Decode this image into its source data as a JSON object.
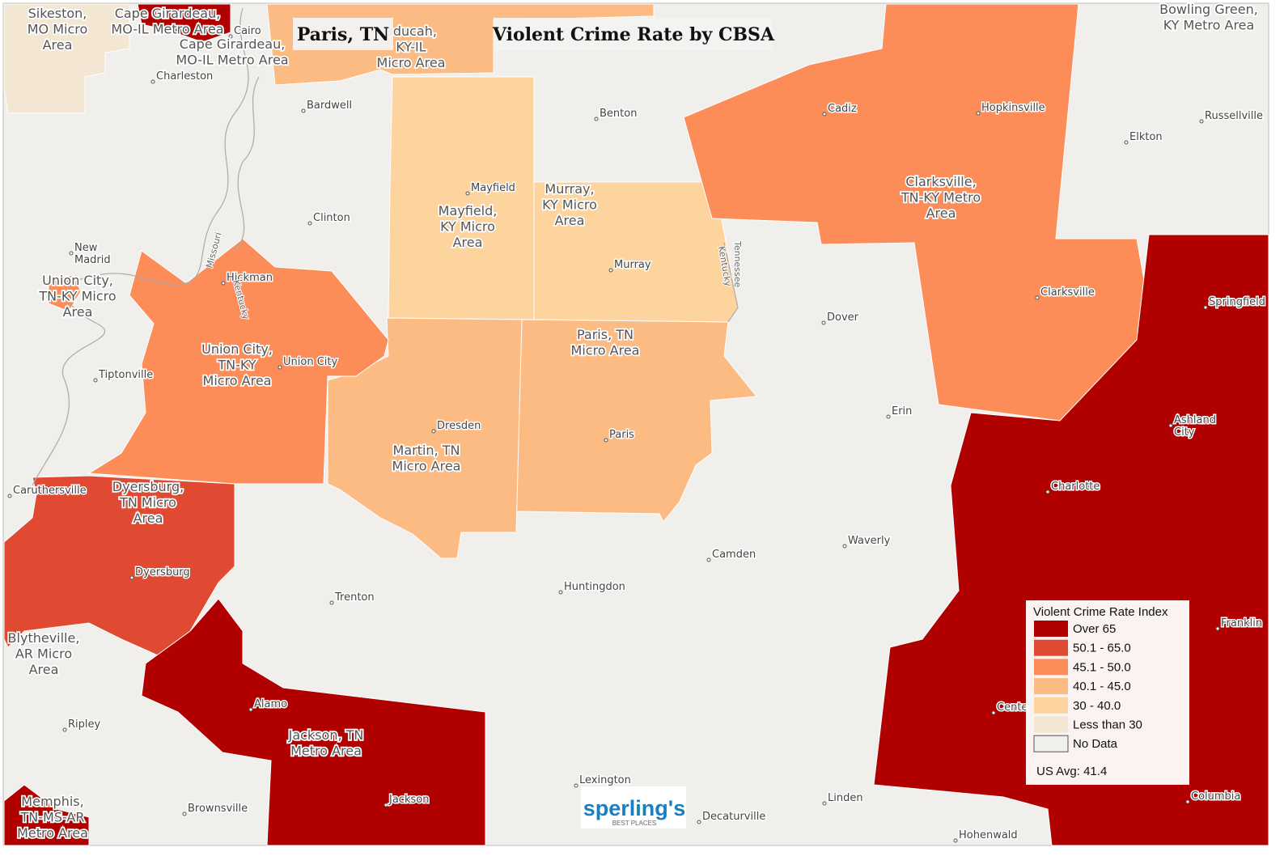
{
  "title": "Violent Crime Rate by CBSA",
  "location": "Paris, TN",
  "cbsa_labels": [
    [
      "Sikeston,",
      "MO Micro",
      "Area"
    ],
    [
      "Cape Girardeau,",
      "MO-IL Metro Area"
    ],
    [
      "Cape Girardeau,",
      "MO-IL Metro Area"
    ],
    [
      "aducah,",
      "KY-IL",
      "Micro Area"
    ],
    [
      "Mayfield,",
      "KY Micro",
      "Area"
    ],
    [
      "Murray,",
      "KY Micro",
      "Area"
    ],
    [
      "Clarksville,",
      "TN-KY Metro",
      "Area"
    ],
    [
      "Union City,",
      "TN-KY Micro",
      "Area"
    ],
    [
      "Union City,",
      "TN-KY",
      "Micro Area"
    ],
    [
      "Paris, TN",
      "Micro Area"
    ],
    [
      "Martin, TN",
      "Micro Area"
    ],
    [
      "Dyersburg,",
      "TN Micro",
      "Area"
    ],
    [
      "Blytheville,",
      "AR Micro",
      "Area"
    ],
    [
      "Jackson, TN",
      "Metro Area"
    ],
    [
      "Memphis,",
      "TN-MS-AR",
      "Metro Area"
    ],
    [
      "Bowling Green,",
      "KY Metro Area"
    ]
  ],
  "places": [
    [
      "Charleston"
    ],
    [
      "Cairo"
    ],
    [
      "Bardwell"
    ],
    [
      "Benton"
    ],
    [
      "Cadiz"
    ],
    [
      "Hopkinsville"
    ],
    [
      "Russellville"
    ],
    [
      "Elkton"
    ],
    [
      "Mayfield"
    ],
    [
      "Clinton"
    ],
    [
      "New",
      "Madrid"
    ],
    [
      "Hickman"
    ],
    [
      "Murray"
    ],
    [
      "Clarksville"
    ],
    [
      "Springfield"
    ],
    [
      "Dover"
    ],
    [
      "Union City"
    ],
    [
      "Tiptonville"
    ],
    [
      "Erin"
    ],
    [
      "Dresden"
    ],
    [
      "Paris"
    ],
    [
      "Ashland",
      "City"
    ],
    [
      "Charlotte"
    ],
    [
      "Caruthersville"
    ],
    [
      "Waverly"
    ],
    [
      "Camden"
    ],
    [
      "Huntingdon"
    ],
    [
      "Trenton"
    ],
    [
      "Dyersburg"
    ],
    [
      "Franklin"
    ],
    [
      "Alamo"
    ],
    [
      "Cente"
    ],
    [
      "Ripley"
    ],
    [
      "Lexington"
    ],
    [
      "Jackson"
    ],
    [
      "Linden"
    ],
    [
      "Columbia"
    ],
    [
      "Brownsville"
    ],
    [
      "Decaturville"
    ],
    [
      "Hohenwald"
    ]
  ],
  "state_labels": [
    "Missouri",
    "Kentucky",
    "Tennessee",
    "Kentucky"
  ],
  "legend": {
    "title": "Violent Crime Rate Index",
    "items": [
      {
        "label": "Over 65",
        "color": "#b10000"
      },
      {
        "label": "50.1 - 65.0",
        "color": "#e04a32"
      },
      {
        "label": "45.1 - 50.0",
        "color": "#fc8d59"
      },
      {
        "label": "40.1 - 45.0",
        "color": "#fdbb84"
      },
      {
        "label": "30 - 40.0",
        "color": "#fdd49e"
      },
      {
        "label": "Less than 30",
        "color": "#f3e6d3"
      },
      {
        "label": "No Data",
        "color": "#f1efeb"
      }
    ],
    "note": "US Avg: 41.4"
  },
  "logo": {
    "name": "sperling's",
    "tagline": "BEST PLACES"
  }
}
